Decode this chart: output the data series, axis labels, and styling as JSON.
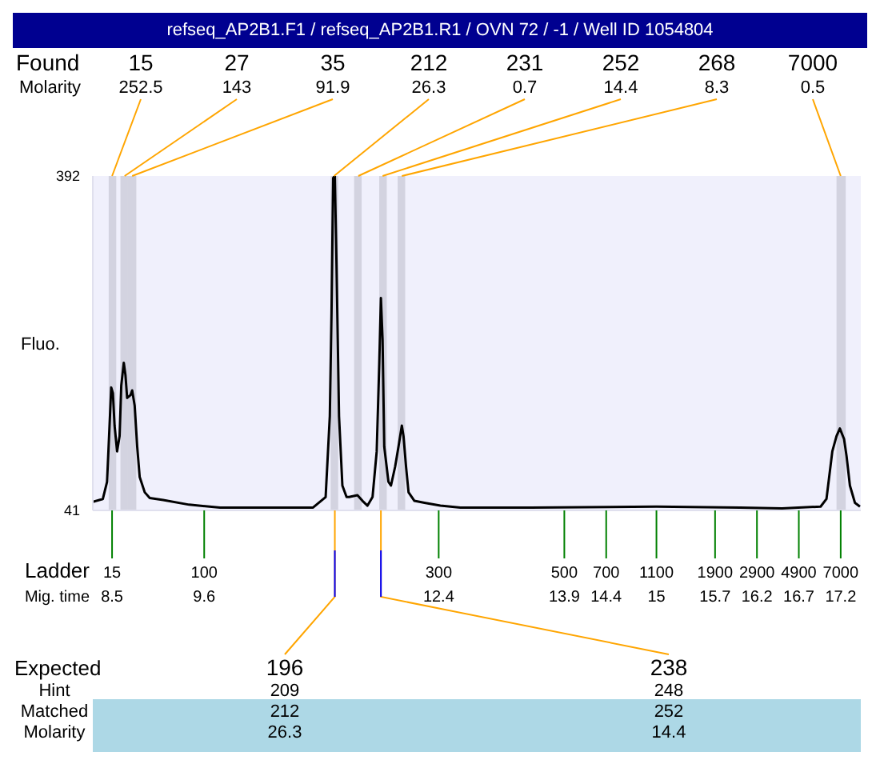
{
  "chart_data": {
    "type": "line",
    "title": "refseq_AP2B1.F1 / refseq_AP2B1.R1 / OVN 72 / -1 / Well ID 1054804",
    "ylabel": "Fluo.",
    "xlabel": "Mig. time",
    "color": "#000000",
    "marker": "none",
    "x": [
      8.27,
      8.39,
      8.44,
      8.47,
      8.49,
      8.51,
      8.53,
      8.56,
      8.59,
      8.61,
      8.64,
      8.66,
      8.68,
      8.72,
      8.74,
      8.77,
      8.8,
      8.83,
      8.89,
      8.95,
      9.11,
      9.42,
      9.79,
      10.34,
      10.9,
      11.05,
      11.1,
      11.12,
      11.14,
      11.16,
      11.18,
      11.21,
      11.25,
      11.3,
      11.33,
      11.43,
      11.49,
      11.55,
      11.61,
      11.66,
      11.69,
      11.71,
      11.73,
      11.75,
      11.8,
      11.83,
      11.88,
      11.92,
      11.96,
      11.98,
      12.01,
      12.04,
      12.11,
      12.23,
      12.42,
      12.66,
      13.5,
      15,
      16,
      16.5,
      16.96,
      17.03,
      17.1,
      17.15,
      17.19,
      17.24,
      17.27,
      17.31,
      17.37,
      17.43
    ],
    "values": [
      50,
      53,
      71,
      130,
      170,
      164,
      130,
      103,
      119,
      172,
      196,
      183,
      159,
      162,
      167,
      151,
      108,
      76,
      60,
      54,
      52,
      47,
      44,
      44,
      44,
      55,
      140,
      247,
      390,
      392,
      299,
      140,
      67,
      55,
      55,
      57,
      51,
      46,
      55,
      103,
      194,
      264,
      220,
      108,
      71,
      67,
      87,
      108,
      130,
      119,
      87,
      60,
      51,
      49,
      46,
      44,
      44,
      45,
      44,
      43,
      45,
      53,
      103,
      119,
      127,
      116,
      98,
      67,
      49,
      45
    ],
    "xlim": [
      8.27,
      17.44
    ],
    "xticks": [
      8.5,
      9.6,
      12.4,
      13.9,
      14.4,
      15,
      15.7,
      16.2,
      16.7,
      17.2
    ],
    "ylim": [
      41,
      392
    ],
    "yticks": [
      41,
      392
    ],
    "bands": [
      {
        "axis": "x",
        "from": 8.46,
        "to": 8.55,
        "label": "15",
        "color": "#d3d3e0"
      },
      {
        "axis": "x",
        "from": 8.6,
        "to": 8.69,
        "label": "27",
        "color": "#d3d3e0"
      },
      {
        "axis": "x",
        "from": 8.69,
        "to": 8.79,
        "label": "35",
        "color": "#d3d3e0"
      },
      {
        "axis": "x",
        "from": 11.11,
        "to": 11.2,
        "label": "212",
        "color": "#d3d3e0"
      },
      {
        "axis": "x",
        "from": 11.39,
        "to": 11.48,
        "label": "231",
        "color": "#d3d3e0"
      },
      {
        "axis": "x",
        "from": 11.69,
        "to": 11.78,
        "label": "252",
        "color": "#d3d3e0"
      },
      {
        "axis": "x",
        "from": 11.91,
        "to": 12.0,
        "label": "268",
        "color": "#d3d3e0"
      },
      {
        "axis": "x",
        "from": 17.15,
        "to": 17.26,
        "label": "7000",
        "color": "#d3d3e0"
      }
    ],
    "annotations": [
      "Found",
      "Molarity",
      "Ladder",
      "Expected",
      "Hint",
      "Matched",
      "Molarity",
      {
        "text": "252.5",
        "x": 8.5,
        "y": 392
      },
      {
        "text": "143",
        "x": 8.65,
        "y": 392
      },
      {
        "text": "91.9",
        "x": 8.74,
        "y": 392
      },
      {
        "text": "26.3",
        "x": 11.15,
        "y": 392
      },
      {
        "text": "0.7",
        "x": 11.44,
        "y": 392
      },
      {
        "text": "14.4",
        "x": 11.73,
        "y": 392
      },
      {
        "text": "8.3",
        "x": 11.96,
        "y": 392
      },
      {
        "text": "0.5",
        "x": 17.2,
        "y": 392
      },
      "15",
      "100",
      "300",
      "500",
      "700",
      "1100",
      "1900",
      "2900",
      "4900",
      "7000",
      {
        "text": "196",
        "x": 11.16,
        "y": 41
      },
      "209",
      "212",
      "26.3",
      {
        "text": "238",
        "x": 11.71,
        "y": 41
      },
      "248",
      "252",
      "14.4"
    ]
  }
}
